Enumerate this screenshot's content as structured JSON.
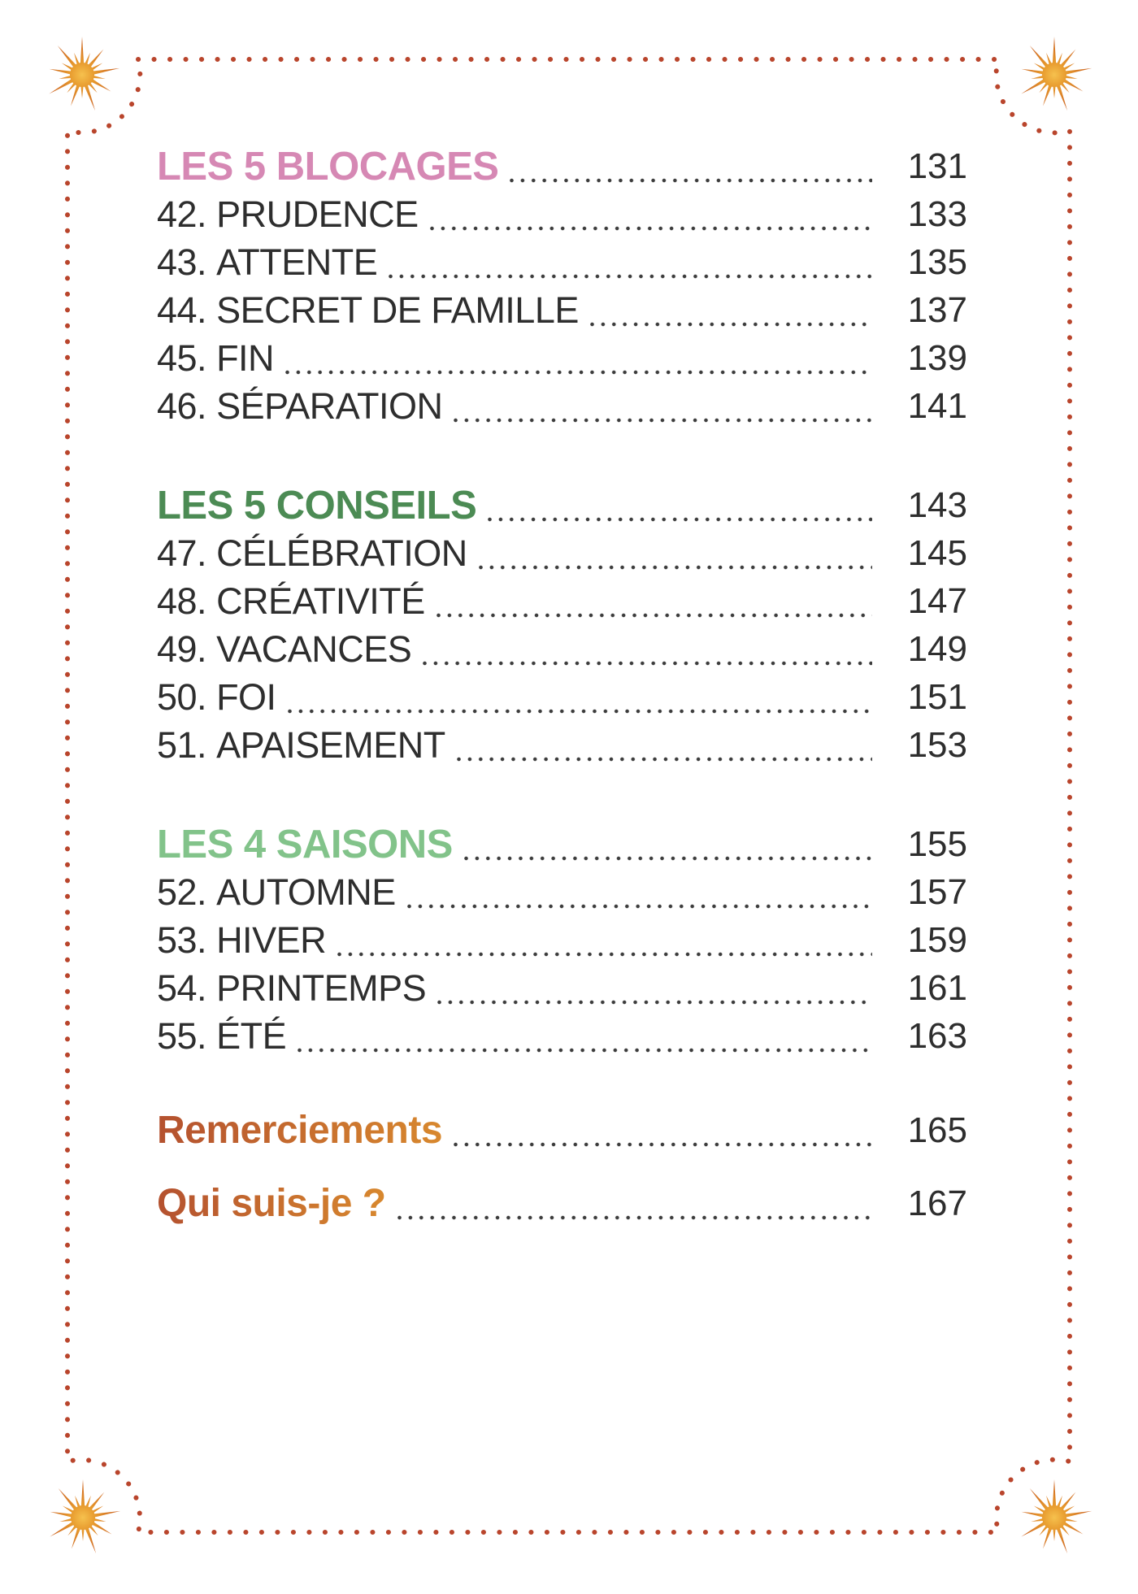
{
  "page": {
    "background": "#ffffff",
    "border_dot_color": "#b9452c",
    "leader_dot_color": "#3c3c3c",
    "item_text_color": "#2e2e2e",
    "outro_gradient": [
      "#b4512f",
      "#d8882e"
    ],
    "sunburst_colors": {
      "center": "#f6c14e",
      "mid": "#e79a2e",
      "tips": "#c85a1e"
    }
  },
  "toc": {
    "rows": [
      {
        "kind": "section",
        "label": "LES 5 BLOCAGES",
        "color": "#d688b4",
        "page": "131"
      },
      {
        "kind": "item",
        "num": "42.",
        "title": "PRUDENCE",
        "page": "133"
      },
      {
        "kind": "item",
        "num": "43.",
        "title": "ATTENTE",
        "page": "135"
      },
      {
        "kind": "item",
        "num": "44.",
        "title": "SECRET DE FAMILLE",
        "page": "137"
      },
      {
        "kind": "item",
        "num": "45.",
        "title": "FIN",
        "page": "139"
      },
      {
        "kind": "item",
        "num": "46.",
        "title": "SÉPARATION",
        "page": "141"
      },
      {
        "kind": "section",
        "label": "LES 5 CONSEILS",
        "color": "#4c8b54",
        "page": "143"
      },
      {
        "kind": "item",
        "num": "47.",
        "title": "CÉLÉBRATION",
        "page": "145"
      },
      {
        "kind": "item",
        "num": "48.",
        "title": "CRÉATIVITÉ",
        "page": "147"
      },
      {
        "kind": "item",
        "num": "49.",
        "title": "VACANCES",
        "page": "149"
      },
      {
        "kind": "item",
        "num": "50.",
        "title": "FOI",
        "page": "151"
      },
      {
        "kind": "item",
        "num": "51.",
        "title": "APAISEMENT",
        "page": "153"
      },
      {
        "kind": "section",
        "label": "LES 4 SAISONS",
        "color": "#82c38a",
        "page": "155"
      },
      {
        "kind": "item",
        "num": "52.",
        "title": "AUTOMNE",
        "page": "157"
      },
      {
        "kind": "item",
        "num": "53.",
        "title": "HIVER",
        "page": "159"
      },
      {
        "kind": "item",
        "num": "54.",
        "title": "PRINTEMPS",
        "page": "161"
      },
      {
        "kind": "item",
        "num": "55.",
        "title": "ÉTÉ",
        "page": "163"
      },
      {
        "kind": "outro",
        "label": "Remerciements",
        "page": "165"
      },
      {
        "kind": "outro",
        "label": "Qui suis-je ?",
        "page": "167"
      }
    ]
  }
}
